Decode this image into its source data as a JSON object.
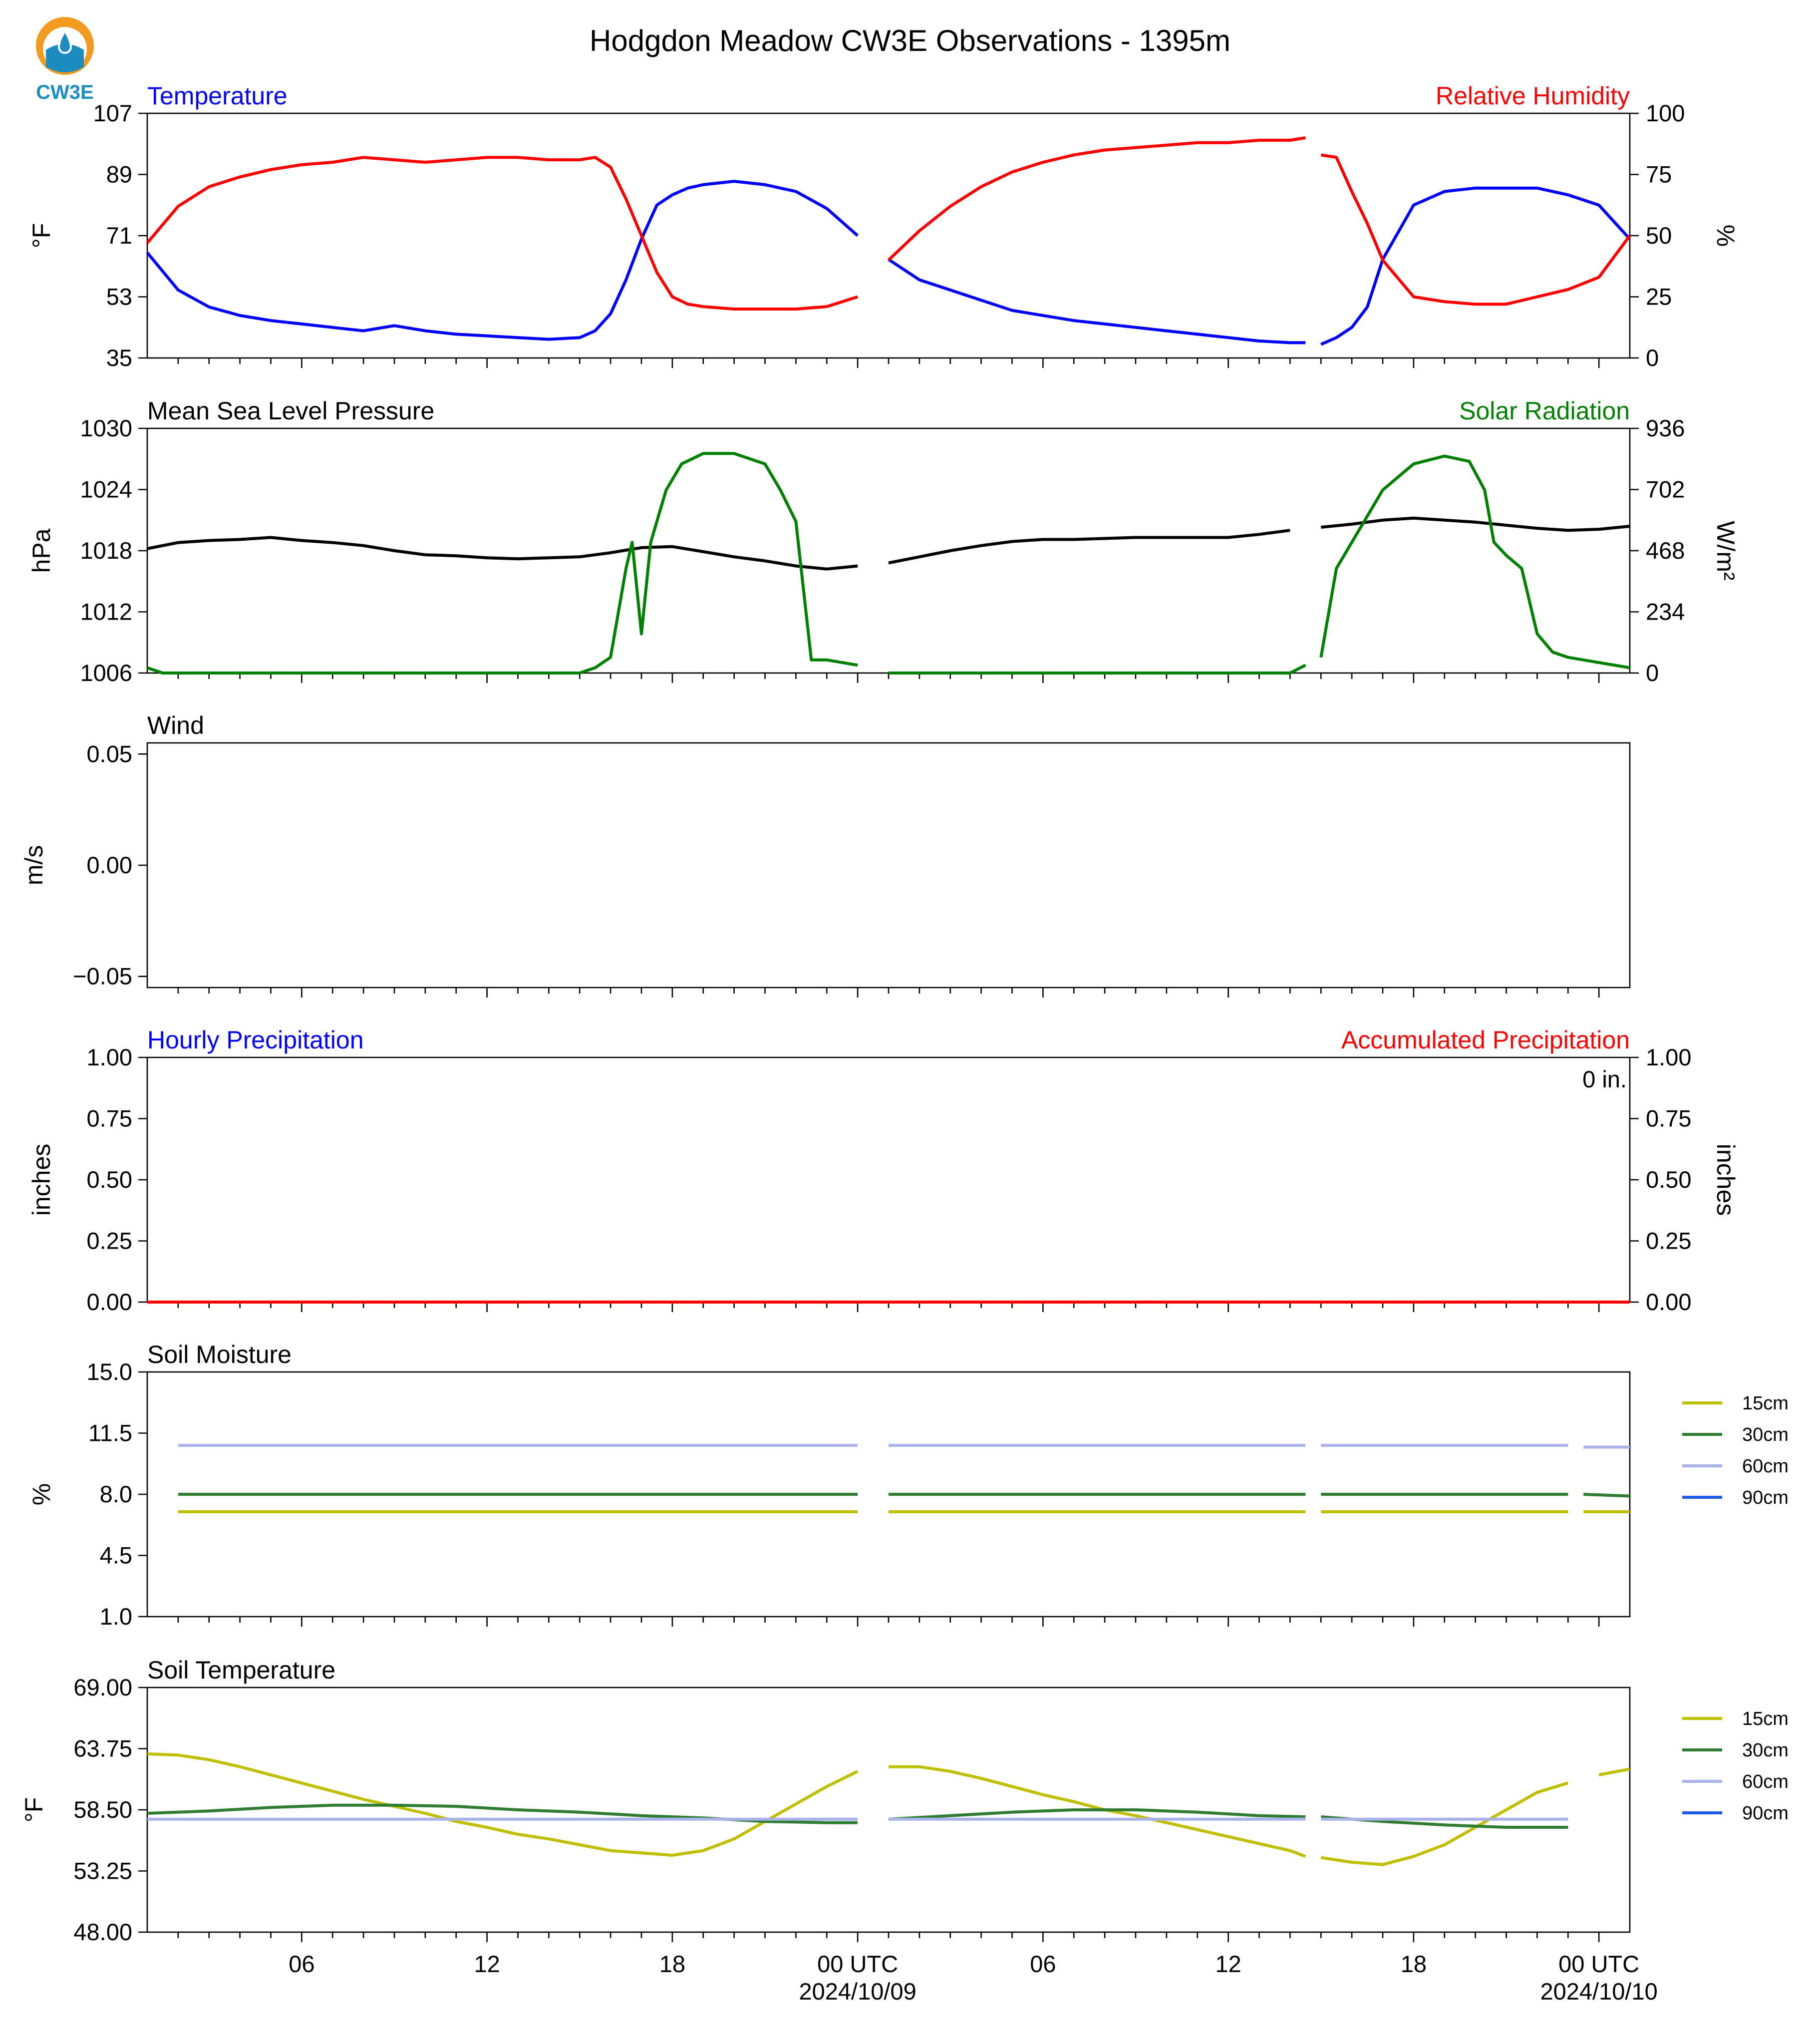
{
  "figure": {
    "title": "Hodgdon Meadow CW3E Observations - 1395m",
    "logo_text": "CW3E",
    "x_hours_end": 48,
    "x_ticks": [
      {
        "hour": 5,
        "label": "06",
        "sub": ""
      },
      {
        "hour": 11,
        "label": "12",
        "sub": ""
      },
      {
        "hour": 17,
        "label": "18",
        "sub": ""
      },
      {
        "hour": 23,
        "label": "00 UTC",
        "sub": "2024/10/09"
      },
      {
        "hour": 29,
        "label": "06",
        "sub": ""
      },
      {
        "hour": 35,
        "label": "12",
        "sub": ""
      },
      {
        "hour": 41,
        "label": "18",
        "sub": ""
      },
      {
        "hour": 47,
        "label": "00 UTC",
        "sub": "2024/10/10"
      }
    ],
    "colors": {
      "blue": "#0000ff",
      "red": "#ff0000",
      "green": "#008000",
      "black": "#000000"
    }
  },
  "chart_data": [
    {
      "type": "line",
      "panel": "temperature_rh",
      "title_left": "Temperature",
      "title_right": "Relative Humidity",
      "ylabel_left": "°F",
      "ylabel_right": "%",
      "ylim_left": [
        35,
        107
      ],
      "ylim_right": [
        0,
        100
      ],
      "yticks_left": [
        "107",
        "89",
        "71",
        "53",
        "35"
      ],
      "yticks_right": [
        "100",
        "75",
        "50",
        "25",
        "0"
      ],
      "series": [
        {
          "name": "Temperature",
          "axis": "left",
          "color": "#0000ff",
          "x": [
            0,
            1,
            2,
            3,
            4,
            5,
            6,
            7,
            8,
            9,
            10,
            11,
            12,
            13,
            14,
            14.5,
            15,
            15.5,
            16,
            16.5,
            17,
            17.5,
            18,
            19,
            20,
            21,
            22,
            23,
            24,
            25,
            26,
            27,
            28,
            29,
            30,
            31,
            32,
            33,
            34,
            35,
            36,
            37,
            37.5,
            38,
            38.5,
            39,
            39.5,
            40,
            41,
            42,
            43,
            44,
            45,
            46,
            47,
            48
          ],
          "y": [
            66,
            55,
            50,
            47.5,
            46,
            45,
            44,
            43,
            44.5,
            43,
            42,
            41.5,
            41,
            40.5,
            41,
            43,
            48,
            58,
            70,
            80,
            83,
            85,
            86,
            87,
            86,
            84,
            79,
            71,
            64,
            58,
            55,
            52,
            49,
            47.5,
            46,
            45,
            44,
            43,
            42,
            41,
            40,
            39.5,
            39.5,
            39,
            41,
            44,
            50,
            64,
            80,
            84,
            85,
            85,
            85,
            83,
            80,
            70
          ],
          "gaps_after": [
            23,
            37.5
          ]
        },
        {
          "name": "Relative Humidity",
          "axis": "right",
          "color": "#ff0000",
          "x": [
            0,
            1,
            2,
            3,
            4,
            5,
            6,
            7,
            8,
            9,
            10,
            11,
            12,
            13,
            14,
            14.5,
            15,
            15.5,
            16,
            16.5,
            17,
            17.5,
            18,
            19,
            20,
            21,
            22,
            23,
            24,
            25,
            26,
            27,
            28,
            29,
            30,
            31,
            32,
            33,
            34,
            35,
            36,
            37,
            37.5,
            38,
            38.5,
            39,
            39.5,
            40,
            41,
            42,
            43,
            44,
            45,
            46,
            47,
            48
          ],
          "y": [
            47,
            62,
            70,
            74,
            77,
            79,
            80,
            82,
            81,
            80,
            81,
            82,
            82,
            81,
            81,
            82,
            78,
            65,
            50,
            35,
            25,
            22,
            21,
            20,
            20,
            20,
            21,
            25,
            40,
            52,
            62,
            70,
            76,
            80,
            83,
            85,
            86,
            87,
            88,
            88,
            89,
            89,
            90,
            83,
            82,
            68,
            55,
            40,
            25,
            23,
            22,
            22,
            25,
            28,
            33,
            50
          ],
          "gaps_after": [
            23,
            37.5
          ]
        }
      ]
    },
    {
      "type": "line",
      "panel": "pressure_solar",
      "title_left": "Mean Sea Level Pressure",
      "title_right": "Solar Radiation",
      "ylabel_left": "hPa",
      "ylabel_right": "W/m²",
      "ylim_left": [
        1006,
        1030
      ],
      "ylim_right": [
        0,
        936
      ],
      "yticks_left": [
        "1030",
        "1024",
        "1018",
        "1012",
        "1006"
      ],
      "yticks_right": [
        "936",
        "702",
        "468",
        "234",
        "0"
      ],
      "series": [
        {
          "name": "Mean Sea Level Pressure",
          "axis": "left",
          "color": "#000000",
          "x": [
            0,
            1,
            2,
            3,
            4,
            5,
            6,
            7,
            8,
            9,
            10,
            11,
            12,
            13,
            14,
            15,
            16,
            17,
            18,
            19,
            20,
            21,
            22,
            23,
            24,
            25,
            26,
            27,
            28,
            29,
            30,
            31,
            32,
            33,
            34,
            35,
            36,
            37,
            38,
            39,
            40,
            41,
            42,
            43,
            44,
            45,
            46,
            47,
            48
          ],
          "y": [
            1018.2,
            1018.8,
            1019.0,
            1019.1,
            1019.3,
            1019.0,
            1018.8,
            1018.5,
            1018.0,
            1017.6,
            1017.5,
            1017.3,
            1017.2,
            1017.3,
            1017.4,
            1017.8,
            1018.3,
            1018.4,
            1017.9,
            1017.4,
            1017.0,
            1016.5,
            1016.2,
            1016.5,
            1016.8,
            1017.4,
            1018.0,
            1018.5,
            1018.9,
            1019.1,
            1019.1,
            1019.2,
            1019.3,
            1019.3,
            1019.3,
            1019.3,
            1019.6,
            1020.0,
            1020.3,
            1020.6,
            1021.0,
            1021.2,
            1021.0,
            1020.8,
            1020.5,
            1020.2,
            1020.0,
            1020.1,
            1020.4
          ],
          "gaps_after": [
            23,
            37.5
          ]
        },
        {
          "name": "Solar Radiation",
          "axis": "right",
          "color": "#008000",
          "x": [
            0,
            0.5,
            1,
            2,
            3,
            4,
            5,
            6,
            7,
            8,
            9,
            10,
            11,
            12,
            13,
            14,
            14.5,
            15,
            15.5,
            15.7,
            16,
            16.3,
            16.8,
            17.3,
            18,
            19,
            20,
            20.5,
            21,
            21.5,
            22,
            22.5,
            23,
            24,
            25,
            26,
            27,
            28,
            29,
            30,
            31,
            32,
            33,
            34,
            35,
            36,
            37,
            37.5,
            38,
            38.5,
            39,
            40,
            41,
            42,
            42.8,
            43.3,
            43.6,
            44,
            44.5,
            45,
            45.5,
            46,
            47,
            48
          ],
          "y": [
            20,
            0,
            0,
            0,
            0,
            0,
            0,
            0,
            0,
            0,
            0,
            0,
            0,
            0,
            0,
            0,
            20,
            60,
            400,
            500,
            150,
            500,
            700,
            800,
            840,
            840,
            800,
            700,
            580,
            50,
            50,
            40,
            30,
            0,
            0,
            0,
            0,
            0,
            0,
            0,
            0,
            0,
            0,
            0,
            0,
            0,
            0,
            30,
            60,
            400,
            500,
            700,
            800,
            830,
            810,
            700,
            500,
            450,
            400,
            150,
            80,
            60,
            40,
            20
          ],
          "gaps_after": [
            23,
            37.5
          ]
        }
      ]
    },
    {
      "type": "line",
      "panel": "wind",
      "title_left": "Wind",
      "ylabel_left": "m/s",
      "ylim_left": [
        -0.055,
        0.055
      ],
      "yticks_left": [
        "0.05",
        "0.00",
        "−0.05"
      ],
      "series": []
    },
    {
      "type": "line",
      "panel": "precipitation",
      "title_left": "Hourly Precipitation",
      "title_right": "Accumulated Precipitation",
      "annotation": "0 in.",
      "ylabel_left": "inches",
      "ylabel_right": "inches",
      "ylim_left": [
        0,
        1
      ],
      "ylim_right": [
        0,
        1
      ],
      "yticks_left": [
        "1.00",
        "0.75",
        "0.50",
        "0.25",
        "0.00"
      ],
      "yticks_right": [
        "1.00",
        "0.75",
        "0.50",
        "0.25",
        "0.00"
      ],
      "series": [
        {
          "name": "Accumulated Precipitation",
          "axis": "left",
          "color": "#ff0000",
          "x": [
            0,
            48
          ],
          "y": [
            0,
            0
          ],
          "gaps_after": []
        }
      ]
    },
    {
      "type": "line",
      "panel": "soil_moisture",
      "title_left": "Soil Moisture",
      "ylabel_left": "%",
      "ylim_left": [
        1,
        15
      ],
      "yticks_left": [
        "15.0",
        "11.5",
        "8.0",
        "4.5",
        "1.0"
      ],
      "legend": [
        "15cm",
        "30cm",
        "60cm",
        "90cm"
      ],
      "legend_colors": [
        "#bfbf00",
        "#2e7d32",
        "#aab2ea",
        "#1f5ce6"
      ],
      "series": [
        {
          "name": "15cm",
          "axis": "left",
          "color": "#bfbf00",
          "x": [
            1,
            23,
            24,
            37.5,
            38,
            46,
            46.5,
            48
          ],
          "y": [
            7.0,
            7.0,
            7.0,
            7.0,
            7.0,
            7.0,
            7.0,
            7.0
          ],
          "gaps_after": [
            23,
            37.5,
            46
          ]
        },
        {
          "name": "30cm",
          "axis": "left",
          "color": "#2e7d32",
          "x": [
            1,
            23,
            24,
            37.5,
            38,
            46,
            46.5,
            48
          ],
          "y": [
            8.0,
            8.0,
            8.0,
            8.0,
            8.0,
            8.0,
            8.0,
            7.9
          ],
          "gaps_after": [
            23,
            37.5,
            46
          ]
        },
        {
          "name": "60cm",
          "axis": "left",
          "color": "#aab2ea",
          "x": [
            1,
            23,
            24,
            37.5,
            38,
            46,
            46.5,
            48
          ],
          "y": [
            10.8,
            10.8,
            10.8,
            10.8,
            10.8,
            10.8,
            10.7,
            10.7
          ],
          "gaps_after": [
            23,
            37.5,
            46
          ]
        }
      ]
    },
    {
      "type": "line",
      "panel": "soil_temperature",
      "title_left": "Soil Temperature",
      "ylabel_left": "°F",
      "ylim_left": [
        48,
        69
      ],
      "yticks_left": [
        "69.00",
        "63.75",
        "58.50",
        "53.25",
        "48.00"
      ],
      "legend": [
        "15cm",
        "30cm",
        "60cm",
        "90cm"
      ],
      "legend_colors": [
        "#bfbf00",
        "#2e7d32",
        "#aab2ea",
        "#1f5ce6"
      ],
      "series": [
        {
          "name": "15cm",
          "axis": "left",
          "color": "#bfbf00",
          "x": [
            0,
            1,
            2,
            3,
            4,
            5,
            6,
            7,
            8,
            9,
            10,
            11,
            12,
            13,
            14,
            15,
            16,
            17,
            18,
            19,
            20,
            21,
            22,
            23,
            24,
            25,
            26,
            27,
            28,
            29,
            30,
            31,
            32,
            33,
            34,
            35,
            36,
            37,
            37.5,
            38,
            39,
            40,
            41,
            42,
            43,
            44,
            45,
            46,
            47,
            48
          ],
          "y": [
            63.3,
            63.2,
            62.8,
            62.2,
            61.5,
            60.8,
            60.1,
            59.4,
            58.8,
            58.2,
            57.5,
            57.0,
            56.4,
            56.0,
            55.5,
            55.0,
            54.8,
            54.6,
            55.0,
            56.0,
            57.5,
            59.0,
            60.5,
            61.8,
            62.2,
            62.2,
            61.8,
            61.2,
            60.5,
            59.8,
            59.2,
            58.5,
            58.0,
            57.4,
            56.8,
            56.2,
            55.6,
            55.0,
            54.5,
            54.4,
            54.0,
            53.8,
            54.5,
            55.5,
            57.0,
            58.5,
            60.0,
            60.8,
            61.5,
            62.0
          ],
          "gaps_after": [
            23,
            37.5,
            46
          ]
        },
        {
          "name": "30cm",
          "axis": "left",
          "color": "#2e7d32",
          "x": [
            0,
            2,
            4,
            6,
            8,
            10,
            12,
            14,
            16,
            18,
            20,
            22,
            23,
            24,
            26,
            28,
            30,
            32,
            34,
            36,
            37.5,
            38,
            40,
            42,
            44,
            46,
            48
          ],
          "y": [
            58.2,
            58.4,
            58.7,
            58.9,
            58.9,
            58.8,
            58.5,
            58.3,
            58.0,
            57.8,
            57.5,
            57.4,
            57.4,
            57.7,
            58.0,
            58.3,
            58.5,
            58.5,
            58.3,
            58.0,
            57.9,
            57.9,
            57.5,
            57.2,
            57.0,
            57.0,
            57.2
          ],
          "gaps_after": [
            23,
            37.5,
            46
          ]
        },
        {
          "name": "60cm",
          "axis": "left",
          "color": "#aab2ea",
          "x": [
            0,
            12,
            23,
            24,
            37.5,
            38,
            46,
            48
          ],
          "y": [
            57.7,
            57.7,
            57.7,
            57.7,
            57.7,
            57.7,
            57.7,
            57.7
          ],
          "gaps_after": [
            23,
            37.5,
            46
          ]
        }
      ]
    }
  ]
}
